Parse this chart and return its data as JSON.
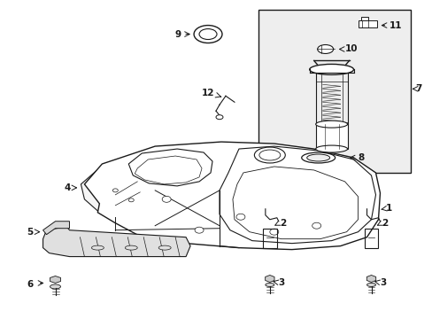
{
  "bg_color": "#ffffff",
  "line_color": "#1a1a1a",
  "box_bg": "#e8e8e8",
  "figsize": [
    4.89,
    3.6
  ],
  "dpi": 100,
  "label_fs": 7.5
}
